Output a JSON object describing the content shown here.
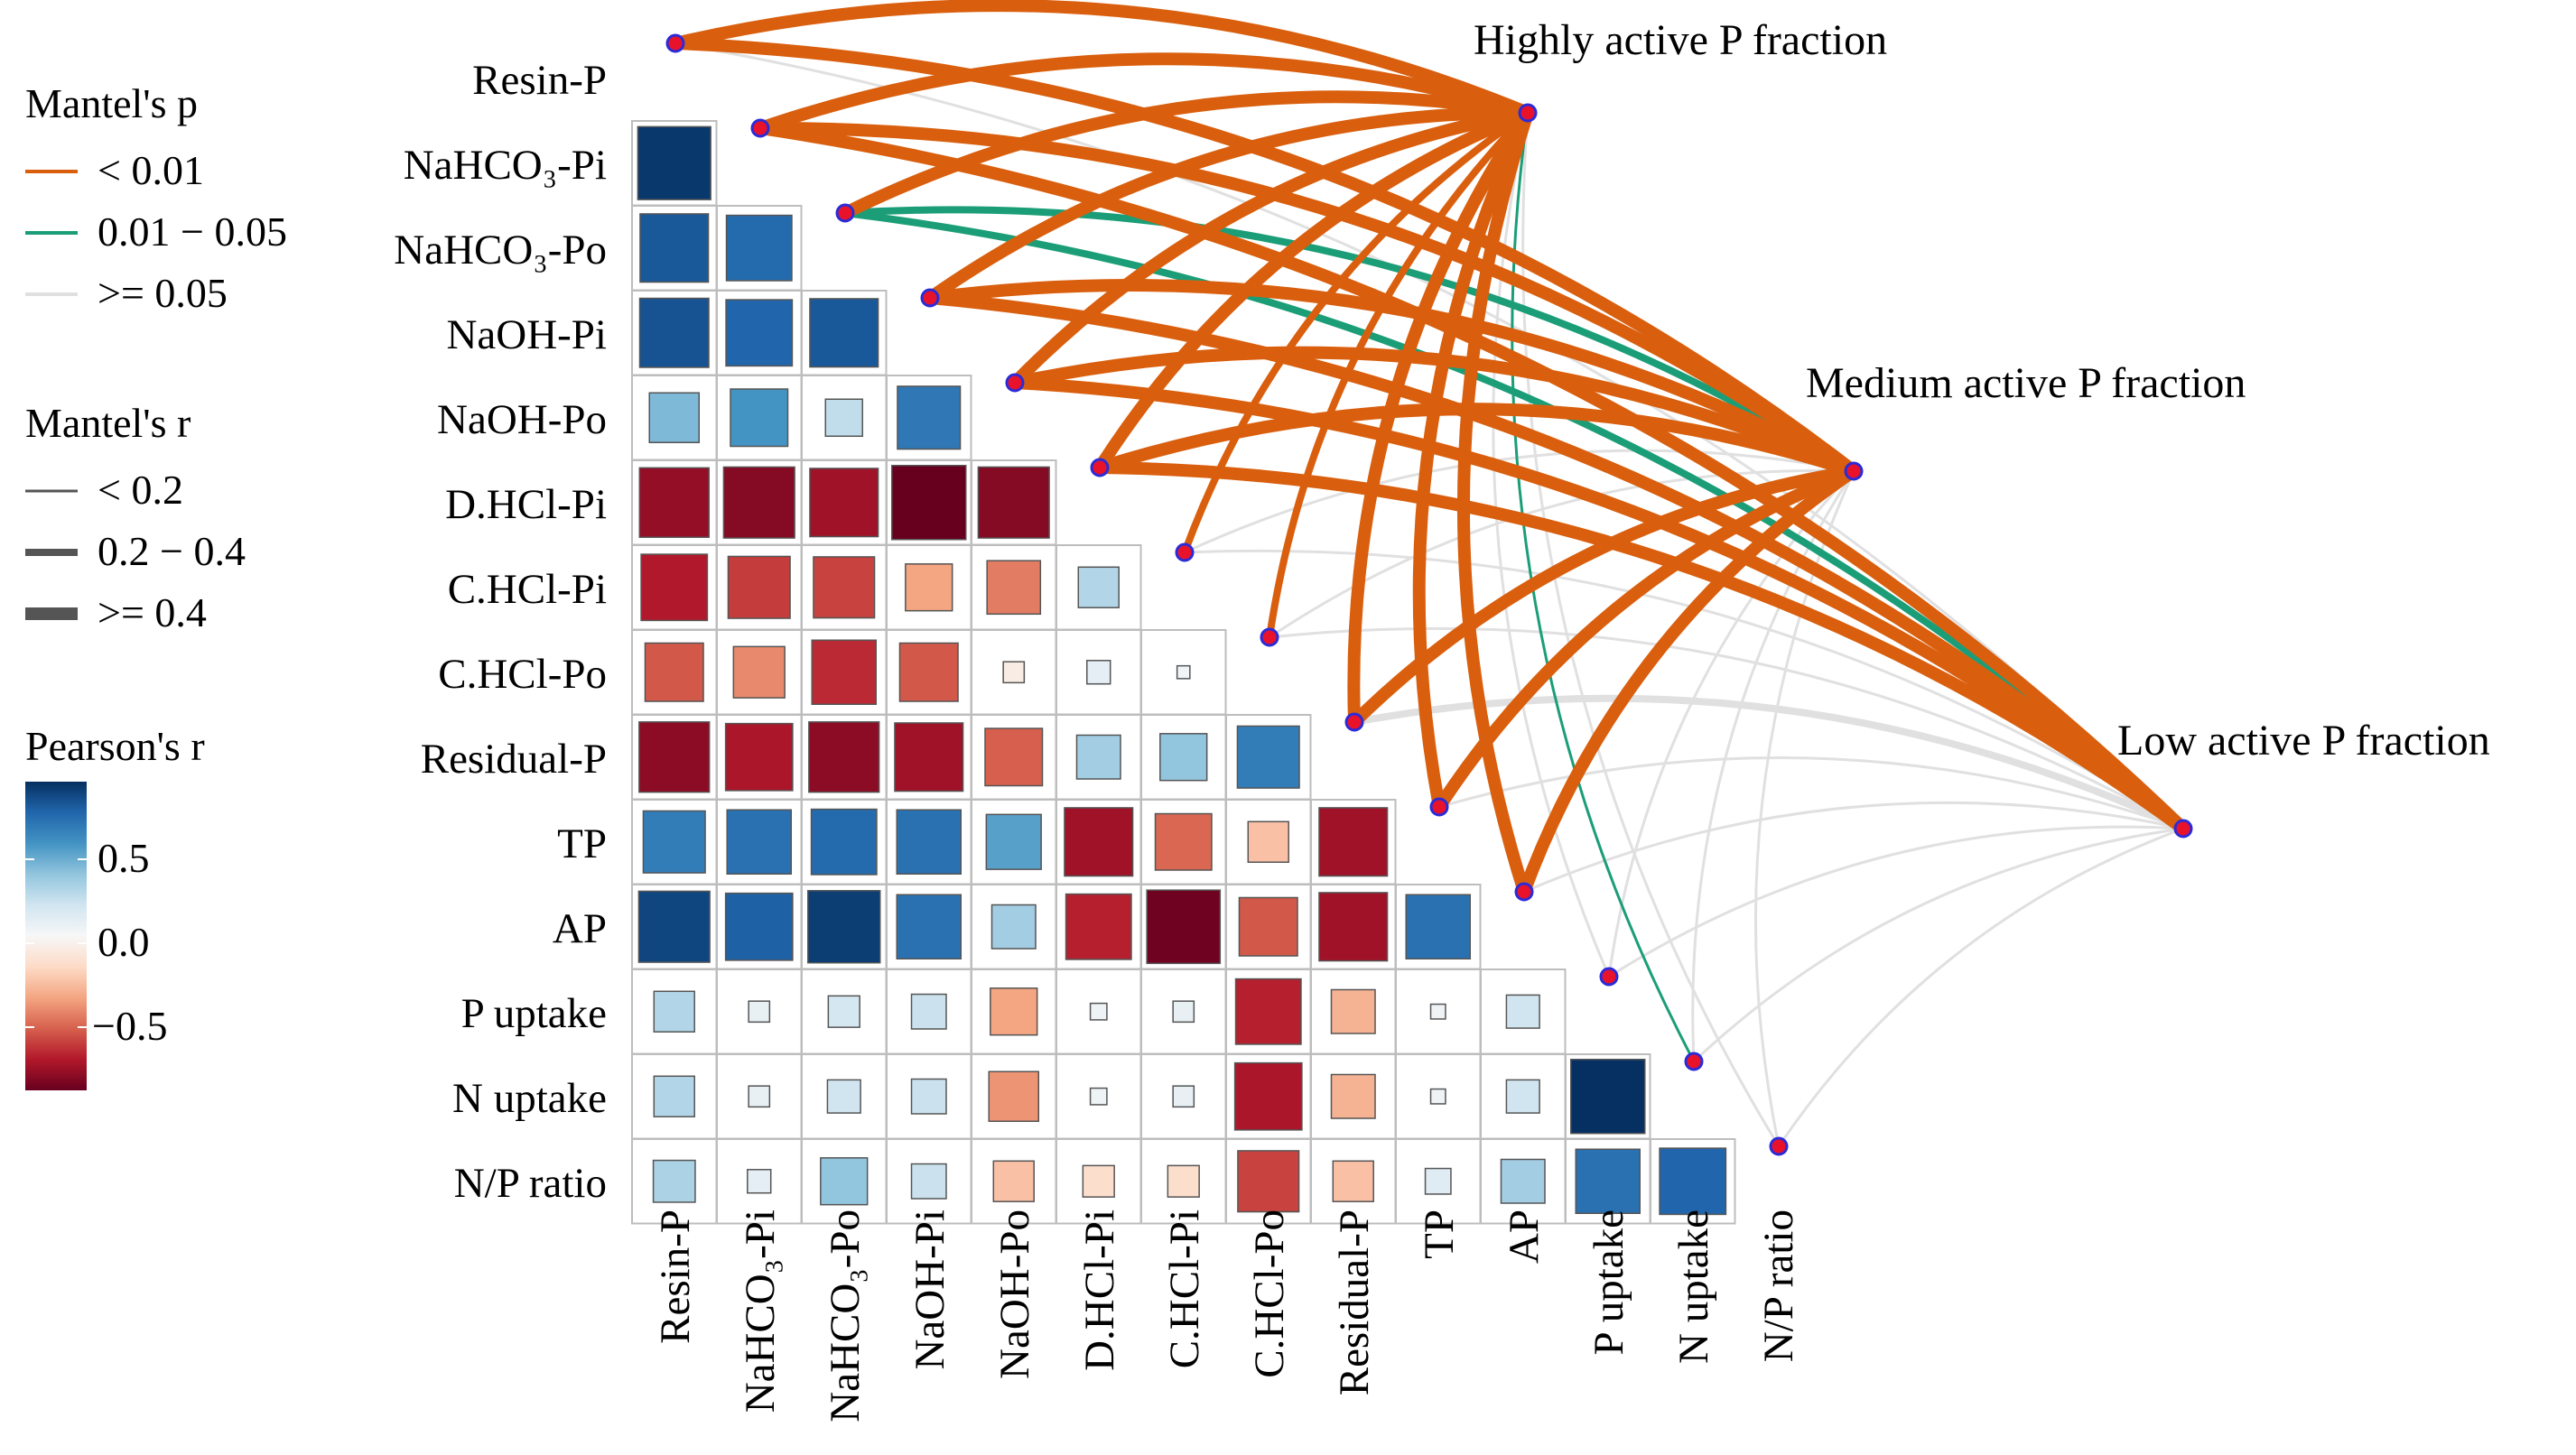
{
  "chart_data": {
    "type": "heatmap",
    "subtype": "mantel-test correlogram (lower-triangle Pearson matrix + Mantel links)",
    "variables": [
      "Resin-P",
      "NaHCO₃-Pi",
      "NaHCO₃-Po",
      "NaOH-Pi",
      "NaOH-Po",
      "D.HCl-Pi",
      "C.HCl-Pi",
      "C.HCl-Po",
      "Residual-P",
      "TP",
      "AP",
      "P uptake",
      "N uptake",
      "N/P ratio"
    ],
    "pearson_r": [
      [
        0.97
      ],
      [
        0.85,
        0.78
      ],
      [
        0.87,
        0.8,
        0.85
      ],
      [
        0.45,
        0.6,
        0.25,
        0.72
      ],
      [
        -0.88,
        -0.92,
        -0.85,
        -1.0,
        -0.92
      ],
      [
        -0.8,
        -0.7,
        -0.68,
        -0.4,
        -0.52,
        0.3
      ],
      [
        -0.62,
        -0.48,
        -0.75,
        -0.62,
        -0.08,
        0.1,
        0.03
      ],
      [
        -0.9,
        -0.82,
        -0.9,
        -0.85,
        -0.6,
        0.35,
        0.4,
        0.7
      ],
      [
        0.7,
        0.75,
        0.78,
        0.75,
        0.55,
        -0.85,
        -0.58,
        -0.3,
        -0.85
      ],
      [
        0.92,
        0.82,
        0.95,
        0.75,
        0.35,
        -0.78,
        -0.98,
        -0.62,
        -0.85,
        0.75
      ],
      [
        0.3,
        0.08,
        0.18,
        0.22,
        -0.4,
        0.05,
        0.08,
        -0.78,
        -0.35,
        0.04,
        0.2
      ],
      [
        0.3,
        0.08,
        0.2,
        0.22,
        -0.45,
        0.05,
        0.08,
        -0.82,
        -0.35,
        0.04,
        0.2,
        1.0
      ],
      [
        0.32,
        0.1,
        0.4,
        0.22,
        -0.3,
        -0.18,
        -0.18,
        -0.68,
        -0.3,
        0.12,
        0.35,
        0.75,
        0.8
      ]
    ],
    "groups": [
      "Highly active P fraction",
      "Medium active P fraction",
      "Low active P fraction"
    ],
    "mantel_links": [
      {
        "group": 0,
        "target": 0,
        "p": "< 0.01",
        "r": ">= 0.4"
      },
      {
        "group": 0,
        "target": 1,
        "p": "< 0.01",
        "r": ">= 0.4"
      },
      {
        "group": 0,
        "target": 2,
        "p": "< 0.01",
        "r": ">= 0.4"
      },
      {
        "group": 0,
        "target": 3,
        "p": "< 0.01",
        "r": ">= 0.4"
      },
      {
        "group": 0,
        "target": 4,
        "p": "< 0.01",
        "r": ">= 0.4"
      },
      {
        "group": 0,
        "target": 5,
        "p": "< 0.01",
        "r": ">= 0.4"
      },
      {
        "group": 0,
        "target": 6,
        "p": "< 0.01",
        "r": "0.2 - 0.4"
      },
      {
        "group": 0,
        "target": 7,
        "p": "< 0.01",
        "r": "0.2 - 0.4"
      },
      {
        "group": 0,
        "target": 8,
        "p": "< 0.01",
        "r": ">= 0.4"
      },
      {
        "group": 0,
        "target": 9,
        "p": "< 0.01",
        "r": ">= 0.4"
      },
      {
        "group": 0,
        "target": 10,
        "p": "< 0.01",
        "r": ">= 0.4"
      },
      {
        "group": 0,
        "target": 11,
        "p": ">= 0.05",
        "r": "< 0.2"
      },
      {
        "group": 0,
        "target": 12,
        "p": "0.01 - 0.05",
        "r": "< 0.2"
      },
      {
        "group": 0,
        "target": 13,
        "p": ">= 0.05",
        "r": "< 0.2"
      },
      {
        "group": 1,
        "target": 0,
        "p": "< 0.01",
        "r": ">= 0.4"
      },
      {
        "group": 1,
        "target": 1,
        "p": "< 0.01",
        "r": ">= 0.4"
      },
      {
        "group": 1,
        "target": 2,
        "p": "0.01 - 0.05",
        "r": "0.2 - 0.4"
      },
      {
        "group": 1,
        "target": 3,
        "p": "< 0.01",
        "r": ">= 0.4"
      },
      {
        "group": 1,
        "target": 4,
        "p": "< 0.01",
        "r": ">= 0.4"
      },
      {
        "group": 1,
        "target": 5,
        "p": "< 0.01",
        "r": ">= 0.4"
      },
      {
        "group": 1,
        "target": 6,
        "p": ">= 0.05",
        "r": "< 0.2"
      },
      {
        "group": 1,
        "target": 7,
        "p": ">= 0.05",
        "r": "< 0.2"
      },
      {
        "group": 1,
        "target": 8,
        "p": "< 0.01",
        "r": ">= 0.4"
      },
      {
        "group": 1,
        "target": 9,
        "p": "< 0.01",
        "r": ">= 0.4"
      },
      {
        "group": 1,
        "target": 10,
        "p": "< 0.01",
        "r": ">= 0.4"
      },
      {
        "group": 1,
        "target": 11,
        "p": ">= 0.05",
        "r": "< 0.2"
      },
      {
        "group": 1,
        "target": 12,
        "p": ">= 0.05",
        "r": "< 0.2"
      },
      {
        "group": 1,
        "target": 13,
        "p": ">= 0.05",
        "r": "< 0.2"
      },
      {
        "group": 2,
        "target": 0,
        "p": ">= 0.05",
        "r": "< 0.2"
      },
      {
        "group": 2,
        "target": 1,
        "p": "< 0.01",
        "r": ">= 0.4"
      },
      {
        "group": 2,
        "target": 2,
        "p": "0.01 - 0.05",
        "r": "0.2 - 0.4"
      },
      {
        "group": 2,
        "target": 3,
        "p": "< 0.01",
        "r": ">= 0.4"
      },
      {
        "group": 2,
        "target": 4,
        "p": "< 0.01",
        "r": ">= 0.4"
      },
      {
        "group": 2,
        "target": 5,
        "p": "< 0.01",
        "r": ">= 0.4"
      },
      {
        "group": 2,
        "target": 6,
        "p": ">= 0.05",
        "r": "< 0.2"
      },
      {
        "group": 2,
        "target": 7,
        "p": ">= 0.05",
        "r": "< 0.2"
      },
      {
        "group": 2,
        "target": 8,
        "p": ">= 0.05",
        "r": "0.2 - 0.4"
      },
      {
        "group": 2,
        "target": 9,
        "p": ">= 0.05",
        "r": "< 0.2"
      },
      {
        "group": 2,
        "target": 10,
        "p": ">= 0.05",
        "r": "< 0.2"
      },
      {
        "group": 2,
        "target": 11,
        "p": ">= 0.05",
        "r": "< 0.2"
      },
      {
        "group": 2,
        "target": 12,
        "p": ">= 0.05",
        "r": "< 0.2"
      },
      {
        "group": 2,
        "target": 13,
        "p": ">= 0.05",
        "r": "< 0.2"
      }
    ],
    "legend": {
      "p_title": "Mantel's p",
      "p_items": [
        {
          "label": "< 0.01",
          "color": "#d95f0e"
        },
        {
          "label": "0.01 − 0.05",
          "color": "#1b9e77"
        },
        {
          "label": ">= 0.05",
          "color": "#e0e0e0"
        }
      ],
      "r_title": "Mantel's r",
      "r_items": [
        {
          "label": "< 0.2",
          "level": 1
        },
        {
          "label": "0.2 − 0.4",
          "level": 2
        },
        {
          "label": ">= 0.4",
          "level": 3
        }
      ],
      "color_title": "Pearson's r",
      "color_ticks": [
        {
          "value": 0.5,
          "label": "0.5"
        },
        {
          "value": 0.0,
          "label": "0.0"
        },
        {
          "value": -0.5,
          "label": "−0.5"
        }
      ],
      "color_range": [
        -1,
        1
      ]
    },
    "colors": {
      "neg_strong": "#67001f",
      "neg_mid": "#d6604d",
      "neg_light": "#fddbc7",
      "neutral": "#f7f7f7",
      "pos_light": "#d1e5f0",
      "pos_mid": "#4393c3",
      "pos_strong": "#053061",
      "node_fill": "#e8132b",
      "node_stroke": "#2b2bd8",
      "grid": "#bdbdbd",
      "square_border": "#555555"
    }
  }
}
